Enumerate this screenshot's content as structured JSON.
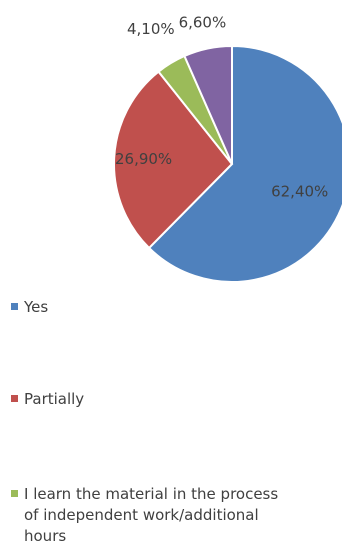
{
  "chart_data": {
    "type": "pie",
    "categories": [
      "Yes",
      "Partially",
      "I learn the material in the process of independent work/additional hours",
      ""
    ],
    "values": [
      62.4,
      26.9,
      4.1,
      6.6
    ],
    "labels": [
      "62,40%",
      "26,90%",
      "4,10%",
      "6,60%"
    ],
    "colors": [
      "#4f81bd",
      "#c0504d",
      "#9bbb59",
      "#8064a2"
    ],
    "legend_position": "bottom",
    "legend": [
      {
        "label": "Yes",
        "color": "#4f81bd"
      },
      {
        "label": "Partially",
        "color": "#c0504d"
      },
      {
        "label": "I learn the material in the process of independent work/additional hours",
        "color": "#9bbb59"
      }
    ]
  }
}
